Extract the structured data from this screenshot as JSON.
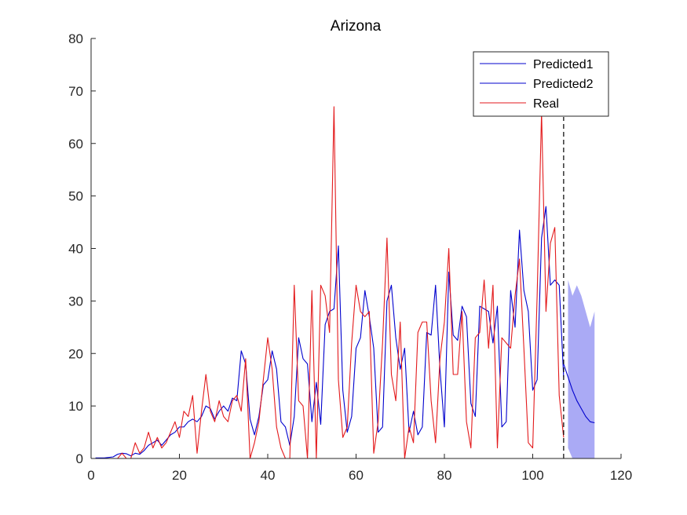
{
  "chart_data": {
    "type": "line",
    "title": "Arizona",
    "xlabel": "",
    "ylabel": "",
    "xlim": [
      0,
      120
    ],
    "ylim": [
      0,
      80
    ],
    "xticks": [
      0,
      20,
      40,
      60,
      80,
      100,
      120
    ],
    "yticks": [
      0,
      10,
      20,
      30,
      40,
      50,
      60,
      70,
      80
    ],
    "grid": false,
    "legend_position": "top-right",
    "divider_x": 107,
    "series": [
      {
        "name": "Predicted1",
        "color": "#0000cd",
        "x": [
          1,
          2,
          3,
          4,
          5,
          6,
          7,
          8,
          9,
          10,
          11,
          12,
          13,
          14,
          15,
          16,
          17,
          18,
          19,
          20,
          21,
          22,
          23,
          24,
          25,
          26,
          27,
          28,
          29,
          30,
          31,
          32,
          33,
          34,
          35,
          36,
          37,
          38,
          39,
          40,
          41,
          42,
          43,
          44,
          45,
          46,
          47,
          48,
          49,
          50,
          51,
          52,
          53,
          54,
          55,
          56,
          57,
          58,
          59,
          60,
          61,
          62,
          63,
          64,
          65,
          66,
          67,
          68,
          69,
          70,
          71,
          72,
          73,
          74,
          75,
          76,
          77,
          78,
          79,
          80,
          81,
          82,
          83,
          84,
          85,
          86,
          87,
          88,
          89,
          90,
          91,
          92,
          93,
          94,
          95,
          96,
          97,
          98,
          99,
          100,
          101,
          102,
          103,
          104,
          105,
          106,
          107
        ],
        "values": [
          0.1,
          0.1,
          0.1,
          0.2,
          0.3,
          0.8,
          1,
          0.9,
          0.5,
          1,
          0.8,
          1.5,
          2.5,
          3,
          3.5,
          2.5,
          3.5,
          4.5,
          5,
          6,
          6,
          7,
          7.5,
          7,
          8,
          10,
          9.5,
          7.5,
          9,
          10,
          9,
          11.5,
          11,
          20.5,
          18,
          7.5,
          4.5,
          8,
          14,
          15,
          20.5,
          17,
          7,
          6,
          2.5,
          8,
          23,
          19,
          18,
          7,
          14.5,
          6.5,
          25.5,
          28,
          28.5,
          40.5,
          13,
          5,
          8,
          21,
          23,
          32,
          27,
          21,
          5,
          6,
          30,
          33,
          23,
          17,
          21,
          5,
          9,
          4.5,
          6,
          24,
          23.5,
          33,
          17,
          6,
          35.5,
          23.5,
          22.5,
          29,
          27,
          10.5,
          8,
          29,
          28.5,
          28,
          22,
          29,
          6,
          7,
          32,
          25,
          43.5,
          32,
          28,
          13,
          15,
          42,
          48,
          33,
          34,
          33,
          15.5
        ]
      },
      {
        "name": "Predicted2",
        "color": "#0000cd",
        "x": [
          107,
          108,
          109,
          110,
          111,
          112,
          113,
          114
        ],
        "values": [
          18,
          15.5,
          13,
          11,
          9.5,
          8,
          7,
          6.8
        ]
      },
      {
        "name": "Real",
        "color": "#e31a1c",
        "x": [
          1,
          2,
          3,
          4,
          5,
          6,
          7,
          8,
          9,
          10,
          11,
          12,
          13,
          14,
          15,
          16,
          17,
          18,
          19,
          20,
          21,
          22,
          23,
          24,
          25,
          26,
          27,
          28,
          29,
          30,
          31,
          32,
          33,
          34,
          35,
          36,
          37,
          38,
          39,
          40,
          41,
          42,
          43,
          44,
          45,
          46,
          47,
          48,
          49,
          50,
          51,
          52,
          53,
          54,
          55,
          56,
          57,
          58,
          59,
          60,
          61,
          62,
          63,
          64,
          65,
          66,
          67,
          68,
          69,
          70,
          71,
          72,
          73,
          74,
          75,
          76,
          77,
          78,
          79,
          80,
          81,
          82,
          83,
          84,
          85,
          86,
          87,
          88,
          89,
          90,
          91,
          92,
          93,
          94,
          95,
          96,
          97,
          98,
          99,
          100,
          101,
          102,
          103,
          104,
          105,
          106,
          107
        ],
        "values": [
          0,
          0,
          0,
          0,
          0,
          0,
          1,
          0,
          0,
          3,
          1,
          2,
          5,
          2,
          4,
          2,
          3,
          5,
          7,
          4,
          9,
          8,
          12,
          1,
          9,
          16,
          9,
          7,
          11,
          8,
          7,
          11,
          12,
          9,
          19,
          0,
          3,
          7,
          15,
          23,
          17,
          6,
          2,
          0,
          0,
          33,
          11,
          10,
          0,
          32,
          0,
          33,
          31,
          24,
          67,
          15,
          4,
          6,
          22,
          33,
          28,
          27,
          28,
          1,
          7,
          22,
          42,
          16,
          11,
          26,
          0,
          6,
          3,
          24,
          26,
          26,
          11,
          3,
          19,
          26,
          40,
          16,
          16,
          28,
          7,
          2,
          23,
          24,
          34,
          21,
          33,
          2,
          23,
          22,
          21,
          31,
          38,
          21,
          3,
          2,
          31,
          66,
          28,
          41,
          44,
          12,
          4
        ]
      }
    ],
    "confidence_band": {
      "color": "#aaaaf5",
      "x": [
        108,
        109,
        110,
        111,
        112,
        113,
        114
      ],
      "upper": [
        34,
        31,
        33,
        31,
        28,
        25,
        28
      ],
      "lower": [
        2,
        0,
        0,
        0,
        0,
        0,
        0
      ]
    }
  }
}
